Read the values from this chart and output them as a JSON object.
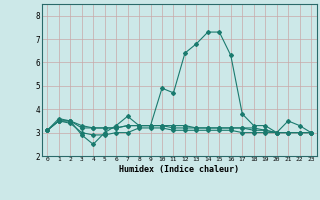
{
  "x": [
    0,
    1,
    2,
    3,
    4,
    5,
    6,
    7,
    8,
    9,
    10,
    11,
    12,
    13,
    14,
    15,
    16,
    17,
    18,
    19,
    20,
    21,
    22,
    23
  ],
  "line1": [
    3.1,
    3.6,
    3.5,
    2.9,
    2.5,
    3.0,
    3.3,
    3.7,
    3.3,
    3.3,
    4.9,
    4.7,
    6.4,
    6.8,
    7.3,
    7.3,
    6.3,
    3.8,
    3.3,
    3.3,
    3.0,
    3.5,
    3.3,
    3.0
  ],
  "line2": [
    3.1,
    3.5,
    3.5,
    3.2,
    3.2,
    3.2,
    3.2,
    3.3,
    3.3,
    3.3,
    3.3,
    3.2,
    3.2,
    3.2,
    3.2,
    3.2,
    3.2,
    3.2,
    3.1,
    3.1,
    3.0,
    3.0,
    3.0,
    3.0
  ],
  "line3": [
    3.1,
    3.5,
    3.5,
    3.3,
    3.2,
    3.2,
    3.2,
    3.3,
    3.3,
    3.3,
    3.3,
    3.3,
    3.3,
    3.2,
    3.2,
    3.2,
    3.2,
    3.2,
    3.2,
    3.1,
    3.0,
    3.0,
    3.0,
    3.0
  ],
  "line4": [
    3.1,
    3.5,
    3.4,
    3.0,
    2.9,
    2.9,
    3.0,
    3.0,
    3.2,
    3.2,
    3.2,
    3.1,
    3.1,
    3.1,
    3.1,
    3.1,
    3.1,
    3.0,
    3.0,
    3.0,
    3.0,
    3.0,
    3.0,
    3.0
  ],
  "line_color": "#1a7a6e",
  "bg_color": "#cce8e8",
  "grid_color": "#b8d8d8",
  "grid_color2": "#d4a0a0",
  "xlabel": "Humidex (Indice chaleur)",
  "ylim": [
    2.0,
    8.5
  ],
  "xlim": [
    -0.5,
    23.5
  ],
  "yticks": [
    2,
    3,
    4,
    5,
    6,
    7,
    8
  ],
  "xticks": [
    0,
    1,
    2,
    3,
    4,
    5,
    6,
    7,
    8,
    9,
    10,
    11,
    12,
    13,
    14,
    15,
    16,
    17,
    18,
    19,
    20,
    21,
    22,
    23
  ]
}
